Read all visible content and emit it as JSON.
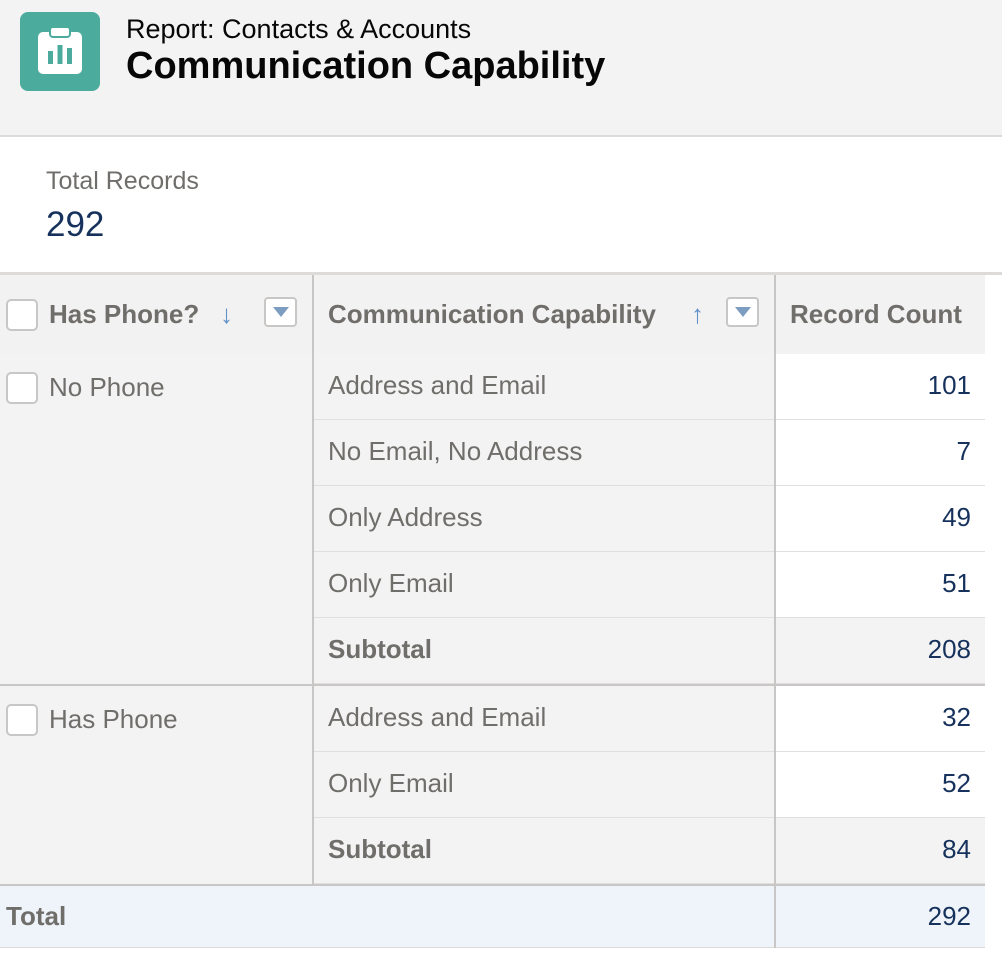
{
  "header": {
    "icon": "report-icon",
    "subtitle": "Report: Contacts & Accounts",
    "title": "Communication Capability"
  },
  "summary": {
    "label": "Total Records",
    "value": "292"
  },
  "table": {
    "columns": [
      {
        "label": "Has Phone?",
        "sort": "descending",
        "sort_icon": "arrow-down-icon",
        "menu_icon": "chevron-down-icon"
      },
      {
        "label": "Communication Capability",
        "sort": "ascending",
        "sort_icon": "arrow-up-icon",
        "menu_icon": "chevron-down-icon"
      },
      {
        "label": "Record Count"
      }
    ],
    "groups": [
      {
        "label": "No Phone",
        "rows": [
          {
            "capability": "Address and Email",
            "count": "101"
          },
          {
            "capability": "No Email, No Address",
            "count": "7"
          },
          {
            "capability": "Only Address",
            "count": "49"
          },
          {
            "capability": "Only Email",
            "count": "51"
          }
        ],
        "subtotal_label": "Subtotal",
        "subtotal": "208"
      },
      {
        "label": "Has Phone",
        "rows": [
          {
            "capability": "Address and Email",
            "count": "32"
          },
          {
            "capability": "Only Email",
            "count": "52"
          }
        ],
        "subtotal_label": "Subtotal",
        "subtotal": "84"
      }
    ],
    "total_label": "Total",
    "total": "292"
  },
  "colors": {
    "icon_bg": "#4bab9c",
    "number": "#16325c",
    "sort_arrow": "#5e90c9",
    "total_row_bg": "#eef4f9"
  }
}
